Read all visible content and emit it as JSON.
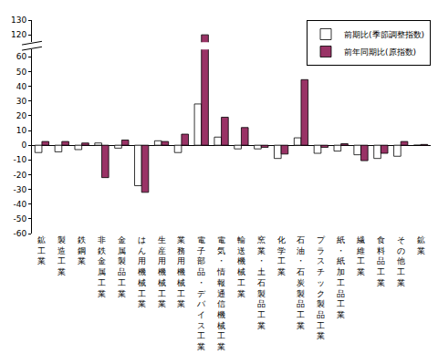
{
  "chart_data": {
    "type": "bar",
    "categories": [
      "鉱工業",
      "製造工業",
      "鉄鋼業",
      "非鉄金属工業",
      "金属製品工業",
      "はん用機械工業",
      "生産用機械工業",
      "業務用機械工業",
      "電子部品・デバイス工業",
      "電気・情報通信機械工業",
      "輸送機械工業",
      "窯業・土石製品工業",
      "化学工業",
      "石油・石炭製品工業",
      "プラスチック製品工業",
      "紙・紙加工品工業",
      "繊維工業",
      "食料品工業",
      "その他工業",
      "鉱業"
    ],
    "series": [
      {
        "name": "前期比(季節調整指数)",
        "color": "#ffffff",
        "values": [
          -5,
          -4.5,
          -3,
          1.5,
          -2,
          -27.5,
          3,
          -5,
          28,
          5.5,
          -2.5,
          -2.5,
          -9,
          5,
          -5.5,
          -4,
          -6.5,
          -9,
          -7.5,
          0
        ]
      },
      {
        "name": "前年同期比(原指数)",
        "color": "#993366",
        "values": [
          2.5,
          2.5,
          1.5,
          -22,
          3.5,
          -32,
          2.5,
          7.5,
          120,
          19,
          12,
          -1.5,
          -6,
          44.5,
          -1.5,
          1,
          -10.5,
          -5.5,
          2.5,
          0.5
        ]
      }
    ],
    "ylim": [
      -60,
      130
    ],
    "yticks": [
      -60,
      -50,
      -40,
      -30,
      -20,
      -10,
      0,
      10,
      20,
      30,
      40,
      50,
      60,
      120,
      130
    ],
    "grid": false,
    "legend": "upper right"
  }
}
